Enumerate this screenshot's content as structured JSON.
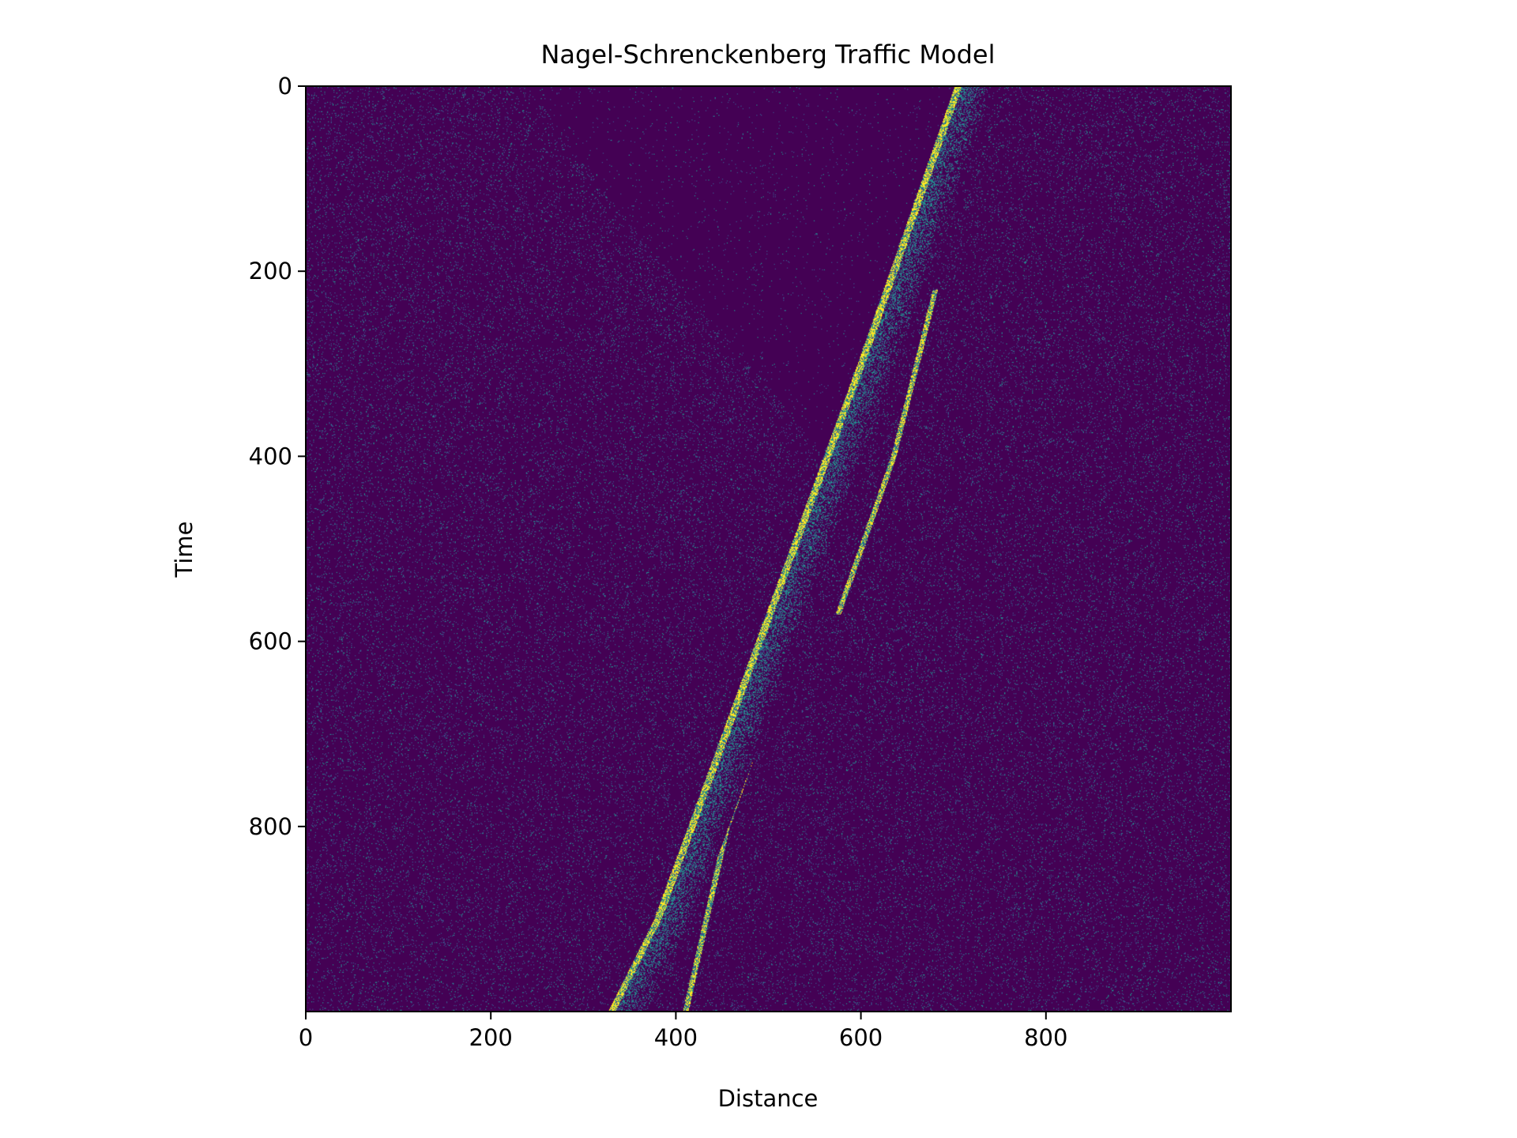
{
  "chart_data": {
    "type": "heatmap",
    "title": "Nagel-Schrenckenberg Traffic Model",
    "xlabel": "Distance",
    "ylabel": "Time",
    "xlim": [
      0,
      1000
    ],
    "ylim": [
      1000,
      0
    ],
    "xticks": [
      0,
      200,
      400,
      600,
      800
    ],
    "yticks": [
      0,
      200,
      400,
      600,
      800
    ],
    "colormap": "viridis",
    "colors": {
      "background": "#440154",
      "sparse": "#3b528b",
      "medium": "#21918c",
      "dense": "#fde725"
    },
    "grid": false,
    "legend": "none",
    "features": {
      "main_jam_band": [
        {
          "time": 0,
          "distance": 705
        },
        {
          "time": 300,
          "distance": 600
        },
        {
          "time": 600,
          "distance": 490
        },
        {
          "time": 900,
          "distance": 380
        },
        {
          "time": 1000,
          "distance": 330
        }
      ],
      "secondary_jam_band": [
        {
          "time": 220,
          "distance": 680
        },
        {
          "time": 400,
          "distance": 635
        },
        {
          "time": 570,
          "distance": 575
        }
      ],
      "trailing_jam_band": [
        {
          "time": 530,
          "distance": 550
        },
        {
          "time": 800,
          "distance": 455
        },
        {
          "time": 1000,
          "distance": 410
        }
      ],
      "low_density_region": [
        {
          "time": 0,
          "distance": 240
        },
        {
          "time": 150,
          "distance": 350
        },
        {
          "time": 300,
          "distance": 480
        },
        {
          "time": 400,
          "distance": 560
        }
      ]
    }
  }
}
